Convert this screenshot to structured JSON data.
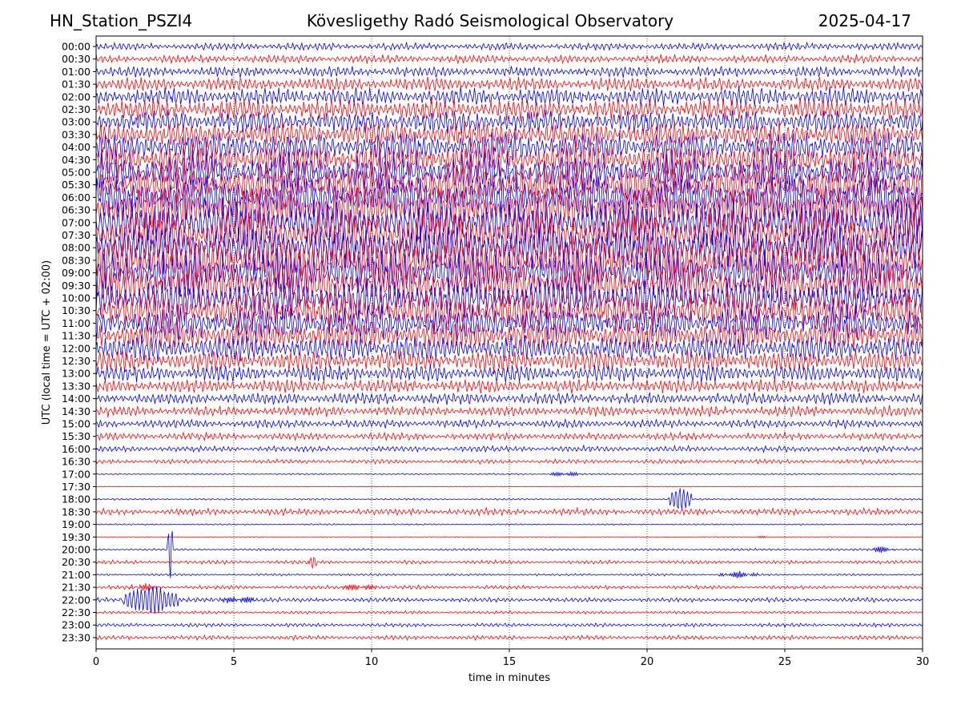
{
  "header": {
    "station": "HN_Station_PSZI4",
    "observatory": "Kövesligethy Radó Seismological Observatory",
    "date": "2025-04-17"
  },
  "colors": {
    "trace_a": "#0000ff",
    "trace_b": "#ff0000",
    "grid": "#000000"
  },
  "chart_data": {
    "type": "line",
    "subtype": "helicorder",
    "xlabel": "time in minutes",
    "ylabel": "UTC (local time = UTC + 02:00)",
    "xlim": [
      0,
      30
    ],
    "x_ticks": [
      0,
      5,
      10,
      15,
      20,
      25,
      30
    ],
    "x_tick_labels": [
      "0",
      "5",
      "10",
      "15",
      "20",
      "25",
      "30"
    ],
    "grid": "vertical dotted at x ticks",
    "row_labels": [
      "00:00",
      "00:30",
      "01:00",
      "01:30",
      "02:00",
      "02:30",
      "03:00",
      "03:30",
      "04:00",
      "04:30",
      "05:00",
      "05:30",
      "06:00",
      "06:30",
      "07:00",
      "07:30",
      "08:00",
      "08:30",
      "09:00",
      "09:30",
      "10:00",
      "10:30",
      "11:00",
      "11:30",
      "12:00",
      "12:30",
      "13:00",
      "13:30",
      "14:00",
      "14:30",
      "15:00",
      "15:30",
      "16:00",
      "16:30",
      "17:00",
      "17:30",
      "18:00",
      "18:30",
      "19:00",
      "19:30",
      "20:00",
      "20:30",
      "21:00",
      "21:30",
      "22:00",
      "22:30",
      "23:00",
      "23:30"
    ],
    "trace_color_order": [
      "blue",
      "red"
    ],
    "relative_noise_amplitude": [
      0.5,
      0.55,
      0.7,
      0.9,
      1.2,
      1.4,
      1.5,
      1.7,
      2.0,
      2.2,
      2.4,
      2.6,
      2.8,
      2.9,
      3.0,
      3.0,
      3.0,
      3.0,
      2.9,
      2.8,
      2.6,
      2.4,
      2.2,
      2.0,
      1.7,
      1.4,
      1.1,
      0.9,
      0.8,
      0.7,
      0.55,
      0.5,
      0.4,
      0.3,
      0.1,
      0.05,
      0.12,
      0.45,
      0.1,
      0.05,
      0.15,
      0.25,
      0.15,
      0.25,
      0.3,
      0.2,
      0.25,
      0.3
    ],
    "events": [
      {
        "row": "17:00",
        "x": 16.5,
        "x_end": 17.5,
        "amplitude": 0.4,
        "kind": "burst"
      },
      {
        "row": "18:00",
        "x": 20.8,
        "x_end": 21.6,
        "amplitude": 2.2,
        "kind": "spike"
      },
      {
        "row": "19:30",
        "x": 24.0,
        "x_end": 24.5,
        "amplitude": 0.2,
        "kind": "burst"
      },
      {
        "row": "20:00",
        "x": 28.0,
        "x_end": 29.0,
        "amplitude": 0.5,
        "kind": "burst"
      },
      {
        "row": "20:30",
        "x": 7.7,
        "x_end": 8.0,
        "amplitude": 1.2,
        "kind": "spike"
      },
      {
        "row": "21:00",
        "x": 22.6,
        "x_end": 24.0,
        "amplitude": 0.5,
        "kind": "burst"
      },
      {
        "row": "21:30",
        "x": 1.2,
        "x_end": 2.2,
        "amplitude": 0.5,
        "kind": "burst"
      },
      {
        "row": "21:30",
        "x": 8.8,
        "x_end": 10.2,
        "amplitude": 0.5,
        "kind": "burst"
      },
      {
        "row": "22:00",
        "x": 4.6,
        "x_end": 5.8,
        "amplitude": 0.6,
        "kind": "burst"
      },
      {
        "row": "20:00",
        "x": 2.6,
        "x_end": 2.8,
        "amplitude": 5.5,
        "kind": "spike"
      },
      {
        "row": "22:00",
        "x": 1.0,
        "x_end": 3.0,
        "amplitude": 2.5,
        "kind": "spike"
      }
    ]
  }
}
